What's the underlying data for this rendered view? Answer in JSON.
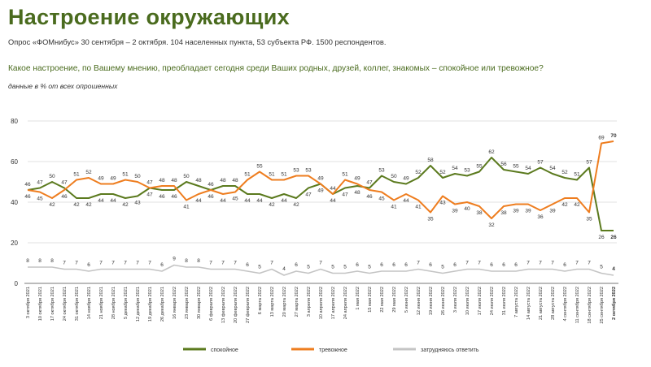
{
  "header": {
    "title": "Настроение окружающих",
    "subtitle": "Опрос «ФОМнибус» 30 сентября – 2 октября. 104 населенных пункта, 53 субъекта РФ. 1500 респондентов.",
    "question": "Какое настроение, по Вашему мнению, преобладает сегодня среди Ваших родных, друзей, коллег, знакомых – спокойное или тревожное?",
    "note": "данные в % от всех опрошенных"
  },
  "colors": {
    "calm": "#5b7a1e",
    "anxious": "#ee7d1f",
    "unsure": "#c4c4c4",
    "grid": "#e2e2e2",
    "title": "#4a6b1e"
  },
  "chart_data": {
    "type": "line",
    "ylim": [
      0,
      80
    ],
    "yticks": [
      0,
      20,
      40,
      60,
      80
    ],
    "grid": true,
    "legend_position": "bottom",
    "categories": [
      "3 октября 2021",
      "10 октября 2021",
      "17 октября 2021",
      "24 октября 2021",
      "31 октября 2021",
      "14 ноября 2021",
      "21 ноября 2021",
      "28 ноября 2021",
      "5 декабря 2021",
      "12 декабря 2021",
      "19 декабря 2021",
      "26 декабря 2021",
      "16 января 2022",
      "23 января 2022",
      "30 января 2022",
      "6 февраля 2022",
      "13 февраля 2022",
      "20 февраля 2022",
      "27 февраля 2022",
      "6 марта 2022",
      "13 марта 2022",
      "20 марта 2022",
      "27 марта 2022",
      "3 апреля 2022",
      "10 апреля 2022",
      "17 апреля 2022",
      "24 апреля 2022",
      "1 мая 2022",
      "15 мая 2022",
      "22 мая 2022",
      "29 мая 2022",
      "5 июня 2022",
      "12 июня 2022",
      "19 июня 2022",
      "26 июня 2022",
      "3 июля 2022",
      "10 июля 2022",
      "17 июля 2022",
      "24 июля 2022",
      "31 июля 2022",
      "7 августа 2022",
      "14 августа 2022",
      "21 августа 2022",
      "28 августа 2022",
      "4 сентября 2022",
      "11 сентября 2022",
      "18 сентября 2022",
      "25 сентября 2022",
      "2 октября 2022"
    ],
    "series": [
      {
        "name": "спокойное",
        "key": "calm",
        "values": [
          46,
          47,
          50,
          47,
          42,
          42,
          44,
          44,
          42,
          43,
          47,
          46,
          46,
          50,
          48,
          46,
          48,
          48,
          44,
          44,
          42,
          44,
          42,
          47,
          49,
          44,
          47,
          48,
          47,
          53,
          50,
          49,
          52,
          58,
          52,
          54,
          53,
          55,
          62,
          56,
          55,
          54,
          57,
          54,
          52,
          51,
          57,
          26,
          26
        ],
        "labels": [
          "46",
          "47",
          "50",
          "47",
          "42",
          "42",
          "44",
          "44",
          "42",
          "43",
          "47",
          "46",
          "46",
          "50",
          "48",
          "46",
          "48",
          "48",
          "44",
          "44",
          "42",
          "44",
          "42",
          "47",
          "49",
          "44",
          "47",
          "48",
          "47",
          "53",
          "50",
          "49",
          "52",
          "58",
          "52",
          "54",
          "53",
          "55",
          "62",
          "56",
          "55",
          "54",
          "57",
          "54",
          "52",
          "51",
          "57",
          "26",
          "26"
        ]
      },
      {
        "name": "тревожное",
        "key": "anxious",
        "values": [
          46,
          45,
          42,
          46,
          51,
          52,
          49,
          49,
          51,
          50,
          47,
          48,
          48,
          41,
          44,
          46,
          44,
          45,
          51,
          55,
          51,
          51,
          53,
          53,
          49,
          44,
          51,
          49,
          46,
          45,
          41,
          44,
          41,
          35,
          43,
          39,
          40,
          38,
          32,
          38,
          39,
          39,
          36,
          39,
          42,
          42,
          35,
          69,
          70
        ],
        "labels": [
          "46",
          "45",
          "42",
          "46",
          "51",
          "52",
          "49",
          "49",
          "51",
          "50",
          "47",
          "48",
          "48",
          "41",
          "44",
          "46",
          "44",
          "45",
          "51",
          "55",
          "51",
          "51",
          "53",
          "53",
          "49",
          "44",
          "51",
          "49",
          "46",
          "45",
          "41",
          "44",
          "41",
          "35",
          "43",
          "39",
          "40",
          "38",
          "32",
          "38",
          "39",
          "39",
          "36",
          "39",
          "42",
          "42",
          "35",
          "69",
          "70"
        ]
      },
      {
        "name": "затрудняюсь ответить",
        "key": "unsure",
        "values": [
          8,
          8,
          8,
          7,
          7,
          6,
          7,
          7,
          7,
          7,
          7,
          6,
          9,
          8,
          8,
          7,
          7,
          7,
          6,
          5,
          7,
          4,
          6,
          5,
          7,
          5,
          5,
          6,
          5,
          6,
          6,
          6,
          7,
          6,
          5,
          6,
          7,
          7,
          6,
          6,
          6,
          7,
          7,
          7,
          6,
          7,
          7,
          5,
          4
        ],
        "labels": [
          "8",
          "8",
          "8",
          "7",
          "7",
          "6",
          "7",
          "7",
          "7",
          "7",
          "7",
          "6",
          "9",
          "8",
          "8",
          "7",
          "7",
          "7",
          "6",
          "5",
          "7",
          "4",
          "6",
          "5",
          "7",
          "5",
          "5",
          "6",
          "5",
          "6",
          "6",
          "6",
          "7",
          "6",
          "5",
          "6",
          "7",
          "7",
          "6",
          "6",
          "6",
          "7",
          "7",
          "7",
          "6",
          "7",
          "7",
          "5",
          "4"
        ]
      }
    ]
  }
}
